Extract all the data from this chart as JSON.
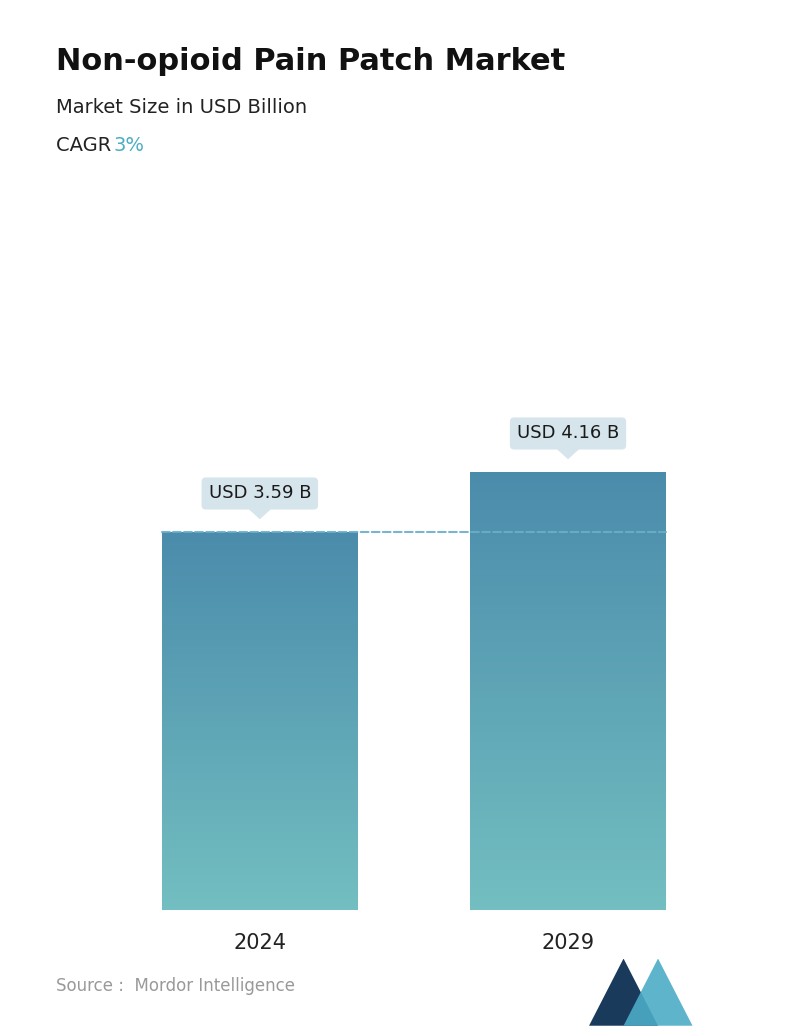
{
  "title": "Non-opioid Pain Patch Market",
  "subtitle": "Market Size in USD Billion",
  "cagr_label": "CAGR  ",
  "cagr_value": "3%",
  "cagr_color": "#4BACC6",
  "categories": [
    "2024",
    "2029"
  ],
  "values": [
    3.59,
    4.16
  ],
  "bar_labels": [
    "USD 3.59 B",
    "USD 4.16 B"
  ],
  "bar_color_top": "#4A8BAB",
  "bar_color_bottom": "#72BEC0",
  "dashed_line_color": "#6AAEC8",
  "dashed_line_y": 3.59,
  "source_text": "Source :  Mordor Intelligence",
  "background_color": "#FFFFFF",
  "title_fontsize": 22,
  "subtitle_fontsize": 14,
  "cagr_fontsize": 14,
  "bar_label_fontsize": 13,
  "axis_label_fontsize": 15,
  "source_fontsize": 12,
  "ylim": [
    0,
    5.5
  ],
  "bar_width": 0.28,
  "positions": [
    0.28,
    0.72
  ]
}
